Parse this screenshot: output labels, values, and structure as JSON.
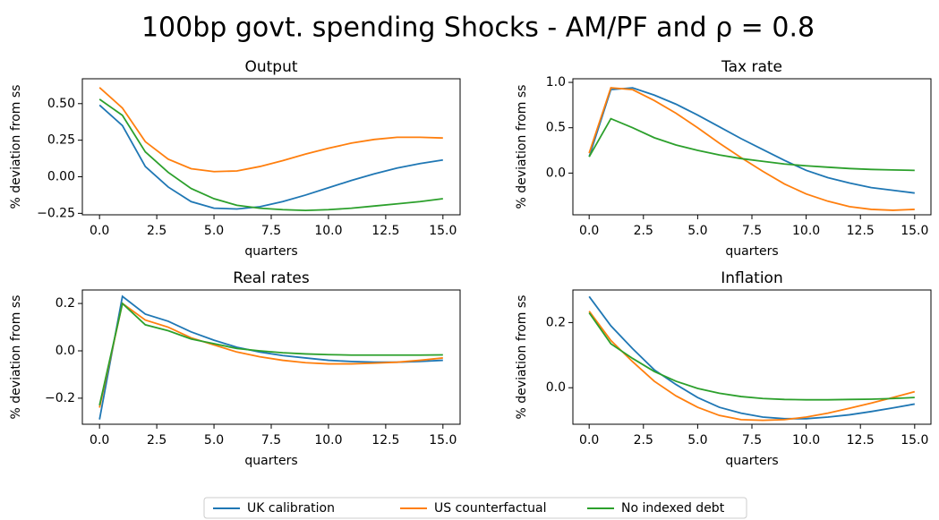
{
  "title": "100bp govt. spending Shocks - AM/PF and ρ =  0.8",
  "chart_data": [
    {
      "type": "line",
      "title": "Output",
      "xlabel": "quarters",
      "ylabel": "% deviation from ss",
      "x": [
        0,
        1,
        2,
        3,
        4,
        5,
        6,
        7,
        8,
        9,
        10,
        11,
        12,
        13,
        14,
        15
      ],
      "series": [
        {
          "name": "UK calibration",
          "color": "#1f77b4",
          "values": [
            0.49,
            0.35,
            0.07,
            -0.07,
            -0.17,
            -0.215,
            -0.22,
            -0.205,
            -0.17,
            -0.125,
            -0.075,
            -0.025,
            0.02,
            0.06,
            0.09,
            0.115
          ]
        },
        {
          "name": "US counterfactual",
          "color": "#ff7f0e",
          "values": [
            0.61,
            0.47,
            0.24,
            0.12,
            0.055,
            0.035,
            0.04,
            0.07,
            0.11,
            0.155,
            0.195,
            0.23,
            0.255,
            0.27,
            0.27,
            0.265
          ]
        },
        {
          "name": "No indexed debt",
          "color": "#2ca02c",
          "values": [
            0.53,
            0.42,
            0.17,
            0.03,
            -0.08,
            -0.15,
            -0.195,
            -0.215,
            -0.225,
            -0.23,
            -0.225,
            -0.215,
            -0.2,
            -0.185,
            -0.17,
            -0.15
          ]
        }
      ],
      "xlim": [
        -0.75,
        15.75
      ],
      "xticks": [
        {
          "value": 0,
          "label": "0.0"
        },
        {
          "value": 2.5,
          "label": "2.5"
        },
        {
          "value": 5,
          "label": "5.0"
        },
        {
          "value": 7.5,
          "label": "7.5"
        },
        {
          "value": 10,
          "label": "10.0"
        },
        {
          "value": 12.5,
          "label": "12.5"
        },
        {
          "value": 15,
          "label": "15.0"
        }
      ],
      "ylim": [
        -0.26,
        0.67
      ],
      "yticks": [
        {
          "value": -0.25,
          "label": "−0.25"
        },
        {
          "value": 0,
          "label": "0.00"
        },
        {
          "value": 0.25,
          "label": "0.25"
        },
        {
          "value": 0.5,
          "label": "0.50"
        }
      ]
    },
    {
      "type": "line",
      "title": "Tax rate",
      "xlabel": "quarters",
      "ylabel": "% deviation from ss",
      "x": [
        0,
        1,
        2,
        3,
        4,
        5,
        6,
        7,
        8,
        9,
        10,
        11,
        12,
        13,
        14,
        15
      ],
      "series": [
        {
          "color": "#1f77b4",
          "values": [
            0.18,
            0.92,
            0.94,
            0.86,
            0.76,
            0.64,
            0.51,
            0.38,
            0.26,
            0.14,
            0.03,
            -0.05,
            -0.11,
            -0.16,
            -0.19,
            -0.22
          ]
        },
        {
          "color": "#ff7f0e",
          "values": [
            0.22,
            0.94,
            0.92,
            0.8,
            0.66,
            0.5,
            0.33,
            0.17,
            0.02,
            -0.12,
            -0.23,
            -0.31,
            -0.37,
            -0.4,
            -0.41,
            -0.4
          ]
        },
        {
          "color": "#2ca02c",
          "values": [
            0.18,
            0.6,
            0.5,
            0.39,
            0.31,
            0.25,
            0.2,
            0.16,
            0.13,
            0.1,
            0.08,
            0.065,
            0.05,
            0.04,
            0.035,
            0.03
          ]
        }
      ],
      "xlim": [
        -0.75,
        15.75
      ],
      "xticks": [
        {
          "value": 0,
          "label": "0.0"
        },
        {
          "value": 2.5,
          "label": "2.5"
        },
        {
          "value": 5,
          "label": "5.0"
        },
        {
          "value": 7.5,
          "label": "7.5"
        },
        {
          "value": 10,
          "label": "10.0"
        },
        {
          "value": 12.5,
          "label": "12.5"
        },
        {
          "value": 15,
          "label": "15.0"
        }
      ],
      "ylim": [
        -0.46,
        1.04
      ],
      "yticks": [
        {
          "value": 0,
          "label": "0.0"
        },
        {
          "value": 0.5,
          "label": "0.5"
        },
        {
          "value": 1,
          "label": "1.0"
        }
      ]
    },
    {
      "type": "line",
      "title": "Real rates",
      "xlabel": "quarters",
      "ylabel": "% deviation from ss",
      "x": [
        0,
        1,
        2,
        3,
        4,
        5,
        6,
        7,
        8,
        9,
        10,
        11,
        12,
        13,
        14,
        15
      ],
      "series": [
        {
          "color": "#1f77b4",
          "values": [
            -0.29,
            0.23,
            0.155,
            0.125,
            0.08,
            0.045,
            0.015,
            -0.005,
            -0.02,
            -0.03,
            -0.04,
            -0.045,
            -0.048,
            -0.048,
            -0.045,
            -0.04
          ]
        },
        {
          "color": "#ff7f0e",
          "values": [
            -0.24,
            0.2,
            0.13,
            0.1,
            0.055,
            0.025,
            -0.005,
            -0.025,
            -0.04,
            -0.05,
            -0.055,
            -0.055,
            -0.052,
            -0.048,
            -0.04,
            -0.03
          ]
        },
        {
          "color": "#2ca02c",
          "values": [
            -0.23,
            0.2,
            0.11,
            0.085,
            0.05,
            0.03,
            0.01,
            0,
            -0.008,
            -0.013,
            -0.016,
            -0.018,
            -0.018,
            -0.018,
            -0.018,
            -0.017
          ]
        }
      ],
      "xlim": [
        -0.75,
        15.75
      ],
      "xticks": [
        {
          "value": 0,
          "label": "0.0"
        },
        {
          "value": 2.5,
          "label": "2.5"
        },
        {
          "value": 5,
          "label": "5.0"
        },
        {
          "value": 7.5,
          "label": "7.5"
        },
        {
          "value": 10,
          "label": "10.0"
        },
        {
          "value": 12.5,
          "label": "12.5"
        },
        {
          "value": 15,
          "label": "15.0"
        }
      ],
      "ylim": [
        -0.31,
        0.257
      ],
      "yticks": [
        {
          "value": -0.2,
          "label": "−0.2"
        },
        {
          "value": 0,
          "label": "0.0"
        },
        {
          "value": 0.2,
          "label": "0.2"
        }
      ]
    },
    {
      "type": "line",
      "title": "Inflation",
      "xlabel": "quarters",
      "ylabel": "% deviation from ss",
      "x": [
        0,
        1,
        2,
        3,
        4,
        5,
        6,
        7,
        8,
        9,
        10,
        11,
        12,
        13,
        14,
        15
      ],
      "series": [
        {
          "color": "#1f77b4",
          "values": [
            0.28,
            0.19,
            0.12,
            0.055,
            0.01,
            -0.03,
            -0.06,
            -0.078,
            -0.09,
            -0.095,
            -0.095,
            -0.09,
            -0.083,
            -0.073,
            -0.062,
            -0.05
          ]
        },
        {
          "color": "#ff7f0e",
          "values": [
            0.235,
            0.145,
            0.08,
            0.02,
            -0.025,
            -0.06,
            -0.085,
            -0.098,
            -0.1,
            -0.098,
            -0.09,
            -0.078,
            -0.063,
            -0.047,
            -0.03,
            -0.012
          ]
        },
        {
          "color": "#2ca02c",
          "values": [
            0.23,
            0.135,
            0.09,
            0.05,
            0.02,
            -0.002,
            -0.017,
            -0.027,
            -0.033,
            -0.036,
            -0.037,
            -0.037,
            -0.036,
            -0.035,
            -0.033,
            -0.03
          ]
        }
      ],
      "xlim": [
        -0.75,
        15.75
      ],
      "xticks": [
        {
          "value": 0,
          "label": "0.0"
        },
        {
          "value": 2.5,
          "label": "2.5"
        },
        {
          "value": 5,
          "label": "5.0"
        },
        {
          "value": 7.5,
          "label": "7.5"
        },
        {
          "value": 10,
          "label": "10.0"
        },
        {
          "value": 12.5,
          "label": "12.5"
        },
        {
          "value": 15,
          "label": "15.0"
        }
      ],
      "ylim": [
        -0.112,
        0.3
      ],
      "yticks": [
        {
          "value": 0,
          "label": "0.0"
        },
        {
          "value": 0.2,
          "label": "0.2"
        }
      ]
    }
  ]
}
